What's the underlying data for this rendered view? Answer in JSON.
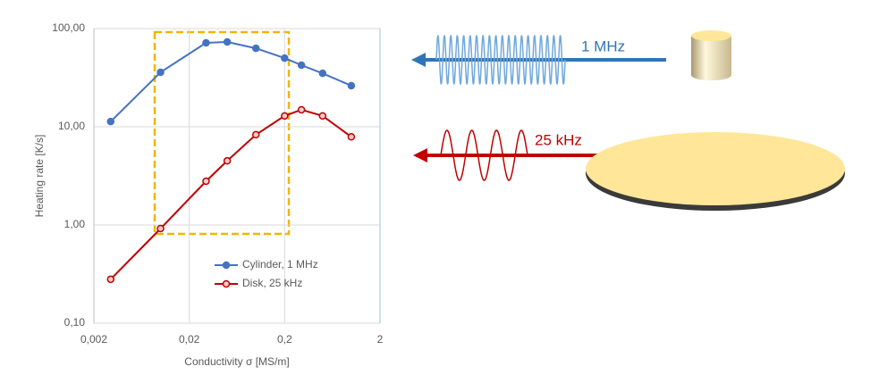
{
  "chart_data": {
    "type": "line",
    "x_label": "Conductivity σ [MS/m]",
    "y_label": "Heating rate  [K/s]",
    "xscale": "log",
    "yscale": "log",
    "xlim": [
      0.002,
      2
    ],
    "ylim": [
      0.1,
      100
    ],
    "xticks": [
      {
        "value": 0.002,
        "label": "0,002"
      },
      {
        "value": 0.02,
        "label": "0,02"
      },
      {
        "value": 0.2,
        "label": "0,2"
      },
      2
    ],
    "yticks": [
      {
        "value": 0.1,
        "label": "0,10"
      },
      {
        "value": 1,
        "label": "1,00"
      },
      {
        "value": 10,
        "label": "10,00"
      },
      {
        "value": 100,
        "label": "100,00"
      }
    ],
    "grid": true,
    "legend": "lower center",
    "x": [
      0.003,
      0.01,
      0.03,
      0.05,
      0.1,
      0.2,
      0.3,
      0.5,
      1
    ],
    "series": [
      {
        "name": "Cylinder, 1 MHz",
        "color": "#4472c4",
        "marker_fill": "#4472c4",
        "values": [
          11.3,
          35.9,
          71.6,
          73,
          63,
          50,
          42.4,
          35,
          26.2
        ]
      },
      {
        "name": "Disk, 25 kHz",
        "color": "#c00000",
        "marker_fill": "#f4cccc",
        "values": [
          0.28,
          0.92,
          2.79,
          4.5,
          8.3,
          12.9,
          14.9,
          12.9,
          7.9
        ]
      }
    ],
    "annotations": [
      "1 MHz",
      "25 kHz"
    ]
  }
}
